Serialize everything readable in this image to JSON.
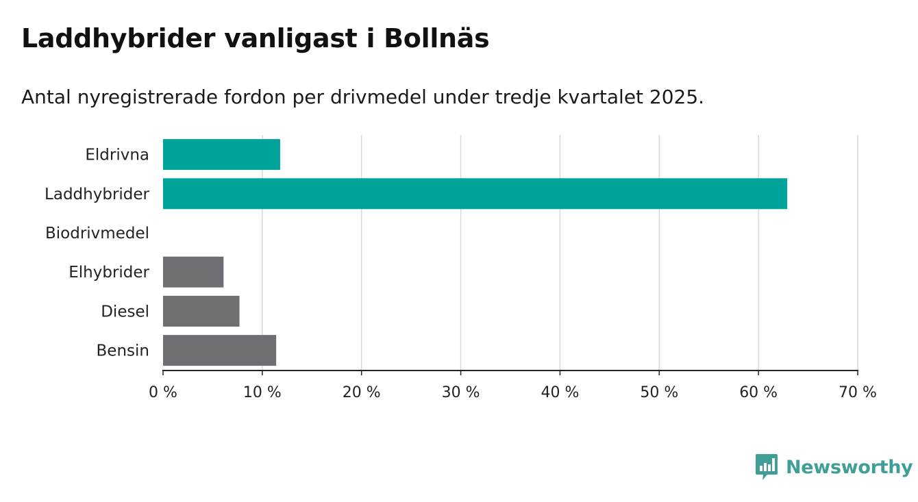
{
  "header": {
    "title": "Laddhybrider vanligast i Bollnäs",
    "subtitle": "Antal nyregistrerade fordon per drivmedel under tredje kvartalet 2025."
  },
  "brand": {
    "name": "Newsworthy",
    "icon": "bar-chart-speech-bubble-icon",
    "color": "#3f9f97"
  },
  "colors": {
    "highlight": "#00a39a",
    "other": "#6f6e73",
    "grid": "#d9d9d9",
    "axis": "#222222"
  },
  "chart_data": {
    "type": "bar",
    "orientation": "horizontal",
    "title": "Laddhybrider vanligast i Bollnäs",
    "subtitle": "Antal nyregistrerade fordon per drivmedel under tredje kvartalet 2025.",
    "xlabel": "",
    "ylabel": "",
    "unit": "%",
    "categories": [
      "Eldrivna",
      "Laddhybrider",
      "Biodrivmedel",
      "Elhybrider",
      "Diesel",
      "Bensin"
    ],
    "values": [
      11.8,
      62.9,
      0,
      6.1,
      7.7,
      11.4
    ],
    "highlighted": [
      true,
      true,
      false,
      false,
      false,
      false
    ],
    "xlim": [
      0,
      70
    ],
    "ticks": [
      0,
      10,
      20,
      30,
      40,
      50,
      60,
      70
    ],
    "tick_labels": [
      "0 %",
      "10 %",
      "20 %",
      "30 %",
      "40 %",
      "50 %",
      "60 %",
      "70 %"
    ],
    "grid": true,
    "legend": "none"
  }
}
